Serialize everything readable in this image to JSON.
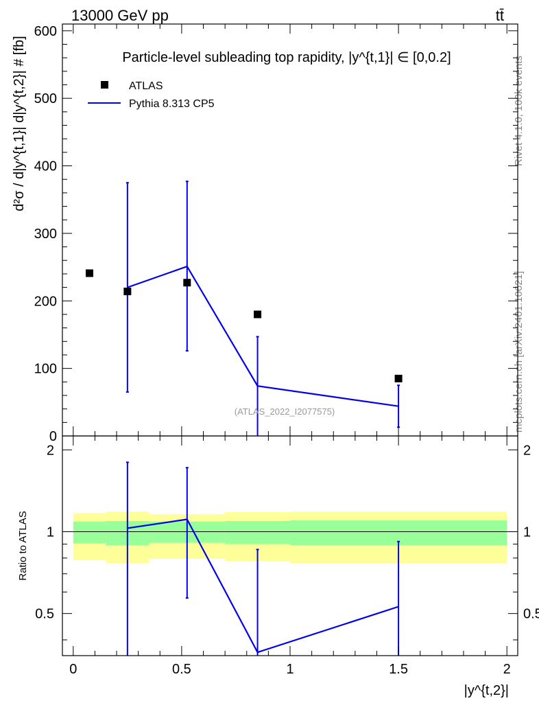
{
  "header": {
    "left": "13000 GeV pp",
    "right": "tt̄"
  },
  "side_text": {
    "rivet": "Rivet 4.1.0,  100k events",
    "mcplots": "mcplots.cern.ch [arXiv:2401.10621]"
  },
  "colors": {
    "data": "#000000",
    "mc": "#0000ee",
    "band_outer": "#ffff99",
    "band_inner": "#99ff99"
  },
  "chart_data": [
    {
      "type": "scatter",
      "panel": "main",
      "title": "Particle-level subleading top rapidity, |y^{t,1}| ∈ [0,0.2]",
      "ylabel": "d²σ / d|y^{t,1}| d|y^{t,2}| # [fb]",
      "watermark": "(ATLAS_2022_I2077575)",
      "xlim": [
        -0.05,
        2.05
      ],
      "ylim": [
        0,
        610
      ],
      "yticks": [
        0,
        100,
        200,
        300,
        400,
        500,
        600
      ],
      "ytick_labels": [
        "0",
        "100",
        "200",
        "300",
        "400",
        "500",
        "600"
      ],
      "legend": {
        "placement": "top-left",
        "entries": [
          {
            "label": "ATLAS",
            "style": "marker"
          },
          {
            "label": "Pythia 8.313 CP5",
            "style": "line"
          }
        ]
      },
      "series": [
        {
          "name": "ATLAS",
          "kind": "markers",
          "x": [
            0.075,
            0.25,
            0.525,
            0.85,
            1.5
          ],
          "y": [
            241,
            214,
            227,
            180,
            85
          ]
        },
        {
          "name": "Pythia 8.313 CP5",
          "kind": "line",
          "x": [
            0.25,
            0.525,
            0.85,
            1.5
          ],
          "y": [
            220,
            251,
            74,
            44
          ],
          "err_low": [
            65,
            126,
            0,
            13
          ],
          "err_high": [
            375,
            377,
            147,
            75
          ]
        }
      ]
    },
    {
      "type": "line",
      "panel": "ratio",
      "ylabel": "Ratio to ATLAS",
      "xlabel": "|y^{t,2}|",
      "xlim": [
        -0.05,
        2.05
      ],
      "ylim": [
        0.35,
        2.25
      ],
      "xticks": [
        0,
        0.5,
        1,
        1.5,
        2
      ],
      "xtick_labels": [
        "0",
        "0.5",
        "1",
        "1.5",
        "2"
      ],
      "yticks": [
        0.5,
        1,
        2
      ],
      "ytick_labels": [
        "0.5",
        "1",
        "2"
      ],
      "reference": 1,
      "bands": {
        "bin_edges": [
          0,
          0.15,
          0.35,
          0.7,
          1.0,
          2.0
        ],
        "outer_low": [
          0.785,
          0.765,
          0.795,
          0.78,
          0.765
        ],
        "outer_high": [
          1.17,
          1.185,
          1.16,
          1.18,
          1.185
        ],
        "inner_low": [
          0.905,
          0.89,
          0.91,
          0.9,
          0.89
        ],
        "inner_high": [
          1.09,
          1.095,
          1.09,
          1.095,
          1.1
        ]
      },
      "series": [
        {
          "name": "Pythia 8.313 CP5",
          "x": [
            0.25,
            0.525,
            0.85,
            1.5
          ],
          "y": [
            1.03,
            1.11,
            0.36,
            0.53
          ],
          "err_low": [
            0.3,
            0.57,
            0.3,
            0.3
          ],
          "err_high": [
            1.8,
            1.72,
            0.86,
            0.92
          ]
        }
      ]
    }
  ]
}
